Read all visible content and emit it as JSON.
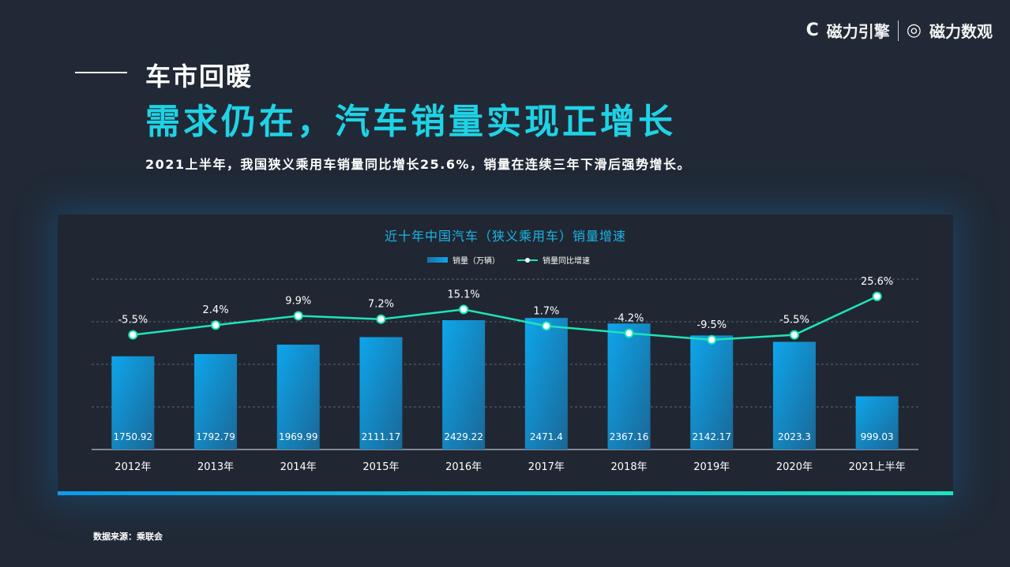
{
  "logos": {
    "brand1": "磁力引擎",
    "brand2": "磁力数观"
  },
  "kicker": "车市回暖",
  "headline": "需求仍在，汽车销量实现正增长",
  "subtitle": "2021上半年，我国狭义乘用车销量同比增长25.6%，销量在连续三年下滑后强势增长。",
  "source": "数据来源：乘联会",
  "chart_data": {
    "type": "bar+line",
    "title": "近十年中国汽车（狭义乘用车）销量增速",
    "categories": [
      "2012年",
      "2013年",
      "2014年",
      "2015年",
      "2016年",
      "2017年",
      "2018年",
      "2019年",
      "2020年",
      "2021上半年"
    ],
    "series": [
      {
        "name": "销量（万辆）",
        "type": "bar",
        "values": [
          1750.92,
          1792.79,
          1969.99,
          2111.17,
          2429.22,
          2471.4,
          2367.16,
          2142.17,
          2023.3,
          999.03
        ],
        "labels": [
          "1750.92",
          "1792.79",
          "1969.99",
          "2111.17",
          "2429.22",
          "2471.4",
          "2367.16",
          "2142.17",
          "2023.3",
          "999.03"
        ]
      },
      {
        "name": "销量同比增速",
        "type": "line",
        "values": [
          -5.5,
          2.4,
          9.9,
          7.2,
          15.1,
          1.7,
          -4.2,
          -9.5,
          -5.5,
          25.6
        ],
        "labels": [
          "-5.5%",
          "2.4%",
          "9.9%",
          "7.2%",
          "15.1%",
          "1.7%",
          "-4.2%",
          "-9.5%",
          "-5.5%",
          "25.6%"
        ]
      }
    ],
    "ylim": [
      0,
      3200
    ],
    "grid": true,
    "legend": "top-center",
    "colors": {
      "bar": "#0ea6ec",
      "line": "#1fe3b8"
    }
  }
}
